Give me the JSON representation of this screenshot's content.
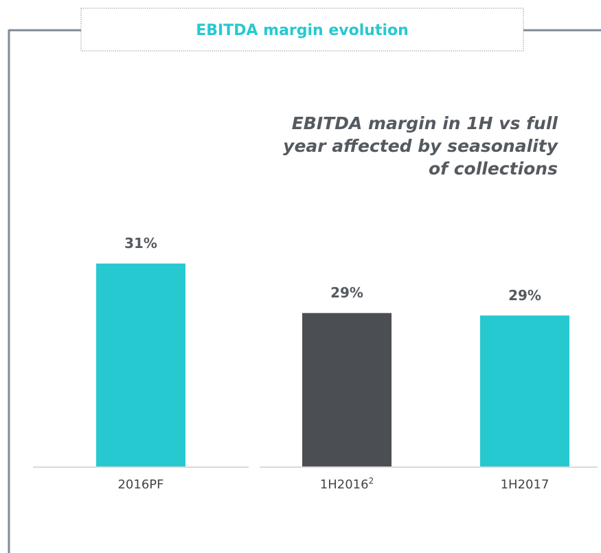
{
  "chart_data": {
    "type": "bar",
    "title": "EBITDA margin evolution",
    "annotation": [
      "EBITDA margin in 1H vs full",
      "year affected by seasonality",
      "of collections"
    ],
    "categories": [
      "2016PF",
      "1H2016",
      "1H2017"
    ],
    "category_superscripts": [
      null,
      "2",
      null
    ],
    "values": [
      30.9,
      28.9,
      28.8
    ],
    "value_labels": [
      "31%",
      "29%",
      "29%"
    ],
    "colors": [
      "#26c9d0",
      "#4b4e52",
      "#26c9d0"
    ],
    "ylim": [
      22.7,
      33
    ]
  }
}
